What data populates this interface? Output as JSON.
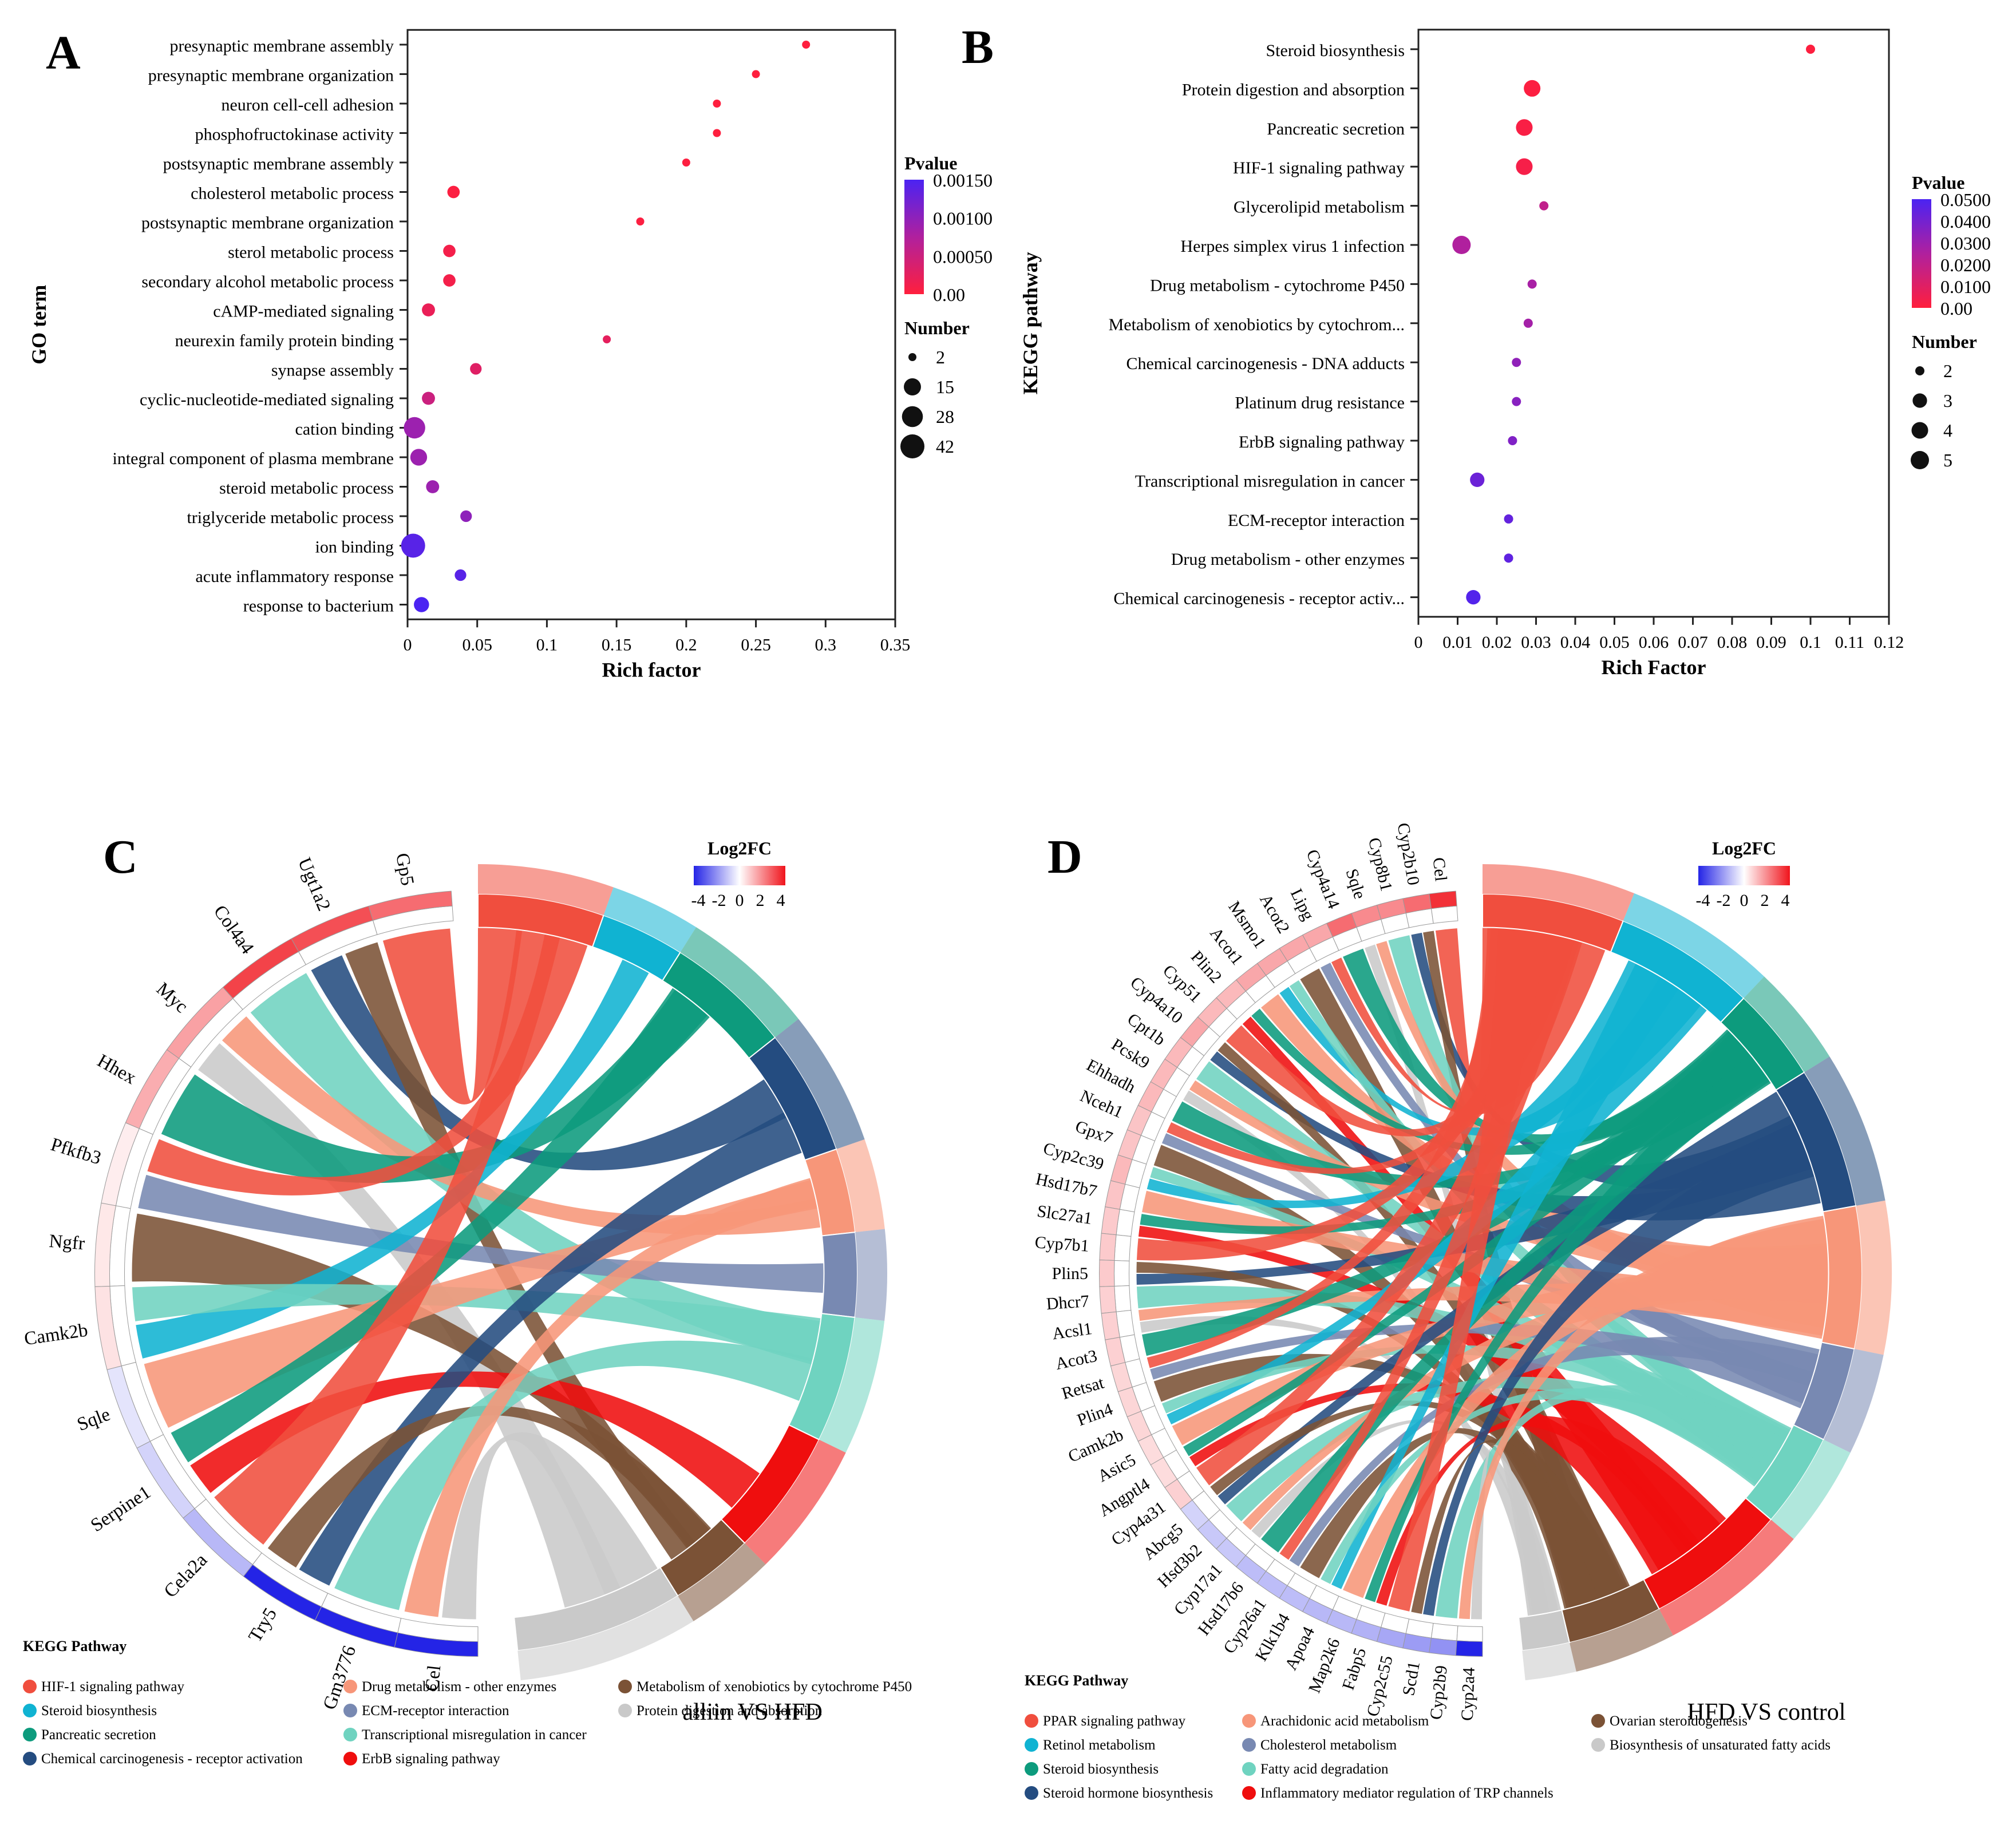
{
  "chart_data": [
    {
      "panel": "A",
      "type": "scatter",
      "xlabel": "Rich factor",
      "ylabel": "GO term",
      "xlim": [
        0,
        0.35
      ],
      "xticks": [
        "0",
        "0.05",
        "0.1",
        "0.15",
        "0.2",
        "0.25",
        "0.3",
        "0.35"
      ],
      "terms": [
        {
          "name": "presynaptic membrane assembly",
          "x": 0.286,
          "count": 2,
          "p": 1e-05
        },
        {
          "name": "presynaptic membrane organization",
          "x": 0.25,
          "count": 2,
          "p": 1e-05
        },
        {
          "name": "neuron cell-cell adhesion",
          "x": 0.222,
          "count": 2,
          "p": 1e-05
        },
        {
          "name": "phosphofructokinase activity",
          "x": 0.222,
          "count": 2,
          "p": 1e-05
        },
        {
          "name": "postsynaptic membrane assembly",
          "x": 0.2,
          "count": 2,
          "p": 2e-05
        },
        {
          "name": "cholesterol metabolic process",
          "x": 0.033,
          "count": 5,
          "p": 3e-05
        },
        {
          "name": "postsynaptic membrane organization",
          "x": 0.167,
          "count": 2,
          "p": 3e-05
        },
        {
          "name": "sterol metabolic process",
          "x": 0.03,
          "count": 5,
          "p": 0.0001
        },
        {
          "name": "secondary alcohol metabolic process",
          "x": 0.03,
          "count": 5,
          "p": 0.0001
        },
        {
          "name": "cAMP-mediated signaling",
          "x": 0.015,
          "count": 6,
          "p": 0.0002
        },
        {
          "name": "neurexin family protein binding",
          "x": 0.143,
          "count": 2,
          "p": 0.00025
        },
        {
          "name": "synapse assembly",
          "x": 0.049,
          "count": 4,
          "p": 0.0003
        },
        {
          "name": "cyclic-nucleotide-mediated signaling",
          "x": 0.015,
          "count": 6,
          "p": 0.0005
        },
        {
          "name": "cation binding",
          "x": 0.005,
          "count": 30,
          "p": 0.0009
        },
        {
          "name": "integral component of plasma membrane",
          "x": 0.008,
          "count": 14,
          "p": 0.0009
        },
        {
          "name": "steroid metabolic process",
          "x": 0.018,
          "count": 6,
          "p": 0.0009
        },
        {
          "name": "triglyceride metabolic process",
          "x": 0.042,
          "count": 4,
          "p": 0.001
        },
        {
          "name": "ion binding",
          "x": 0.004,
          "count": 42,
          "p": 0.0014
        },
        {
          "name": "acute inflammatory response",
          "x": 0.038,
          "count": 4,
          "p": 0.0014
        },
        {
          "name": "response to bacterium",
          "x": 0.01,
          "count": 10,
          "p": 0.0015
        }
      ],
      "legend": {
        "color_title": "Pvalue",
        "color_ticks": [
          "0.00150",
          "0.00100",
          "0.00050",
          "0.00"
        ],
        "size_title": "Number",
        "size_labels": [
          "2",
          "15",
          "28",
          "42"
        ]
      }
    },
    {
      "panel": "B",
      "type": "scatter",
      "xlabel": "Rich Factor",
      "ylabel": "KEGG pathway",
      "xlim": [
        0,
        0.12
      ],
      "xticks": [
        "0",
        "0.01",
        "0.02",
        "0.03",
        "0.04",
        "0.05",
        "0.06",
        "0.07",
        "0.08",
        "0.09",
        "0.1",
        "0.11",
        "0.12"
      ],
      "terms": [
        {
          "name": "Steroid biosynthesis",
          "x": 0.1,
          "count": 2,
          "p": 0.0005
        },
        {
          "name": "Protein digestion and absorption",
          "x": 0.029,
          "count": 4,
          "p": 0.001
        },
        {
          "name": "Pancreatic secretion",
          "x": 0.027,
          "count": 4,
          "p": 0.002
        },
        {
          "name": "HIF-1 signaling pathway",
          "x": 0.027,
          "count": 4,
          "p": 0.003
        },
        {
          "name": "Glycerolipid metabolism",
          "x": 0.032,
          "count": 2,
          "p": 0.02
        },
        {
          "name": "Herpes simplex virus 1 infection",
          "x": 0.011,
          "count": 5,
          "p": 0.025
        },
        {
          "name": "Drug metabolism - cytochrome P450",
          "x": 0.029,
          "count": 2,
          "p": 0.027
        },
        {
          "name": "Metabolism of xenobiotics by cytochrom...",
          "x": 0.028,
          "count": 2,
          "p": 0.028
        },
        {
          "name": "Chemical carcinogenesis - DNA adducts",
          "x": 0.025,
          "count": 2,
          "p": 0.033
        },
        {
          "name": "Platinum drug resistance",
          "x": 0.025,
          "count": 2,
          "p": 0.035
        },
        {
          "name": "ErbB signaling pathway",
          "x": 0.024,
          "count": 2,
          "p": 0.037
        },
        {
          "name": "Transcriptional misregulation in cancer",
          "x": 0.015,
          "count": 3,
          "p": 0.042
        },
        {
          "name": "ECM-receptor interaction",
          "x": 0.023,
          "count": 2,
          "p": 0.044
        },
        {
          "name": "Drug metabolism - other enzymes",
          "x": 0.023,
          "count": 2,
          "p": 0.045
        },
        {
          "name": "Chemical carcinogenesis - receptor activ...",
          "x": 0.014,
          "count": 3,
          "p": 0.048
        }
      ],
      "legend": {
        "color_title": "Pvalue",
        "color_ticks": [
          "0.0500",
          "0.0400",
          "0.0300",
          "0.0200",
          "0.0100",
          "0.00"
        ],
        "size_title": "Number",
        "size_labels": [
          "2",
          "3",
          "4",
          "5"
        ]
      }
    },
    {
      "panel": "C",
      "type": "chord",
      "comparison": "alliin VS HFD",
      "colorbar": {
        "title": "Log2FC",
        "ticks": [
          "-4",
          "-2",
          "0",
          "2",
          "4"
        ]
      },
      "genes": [
        {
          "name": "Gp5",
          "fc": 2.5
        },
        {
          "name": "Ugt1a2",
          "fc": 3
        },
        {
          "name": "Col4a4",
          "fc": 3.2
        },
        {
          "name": "Myc",
          "fc": 1.6
        },
        {
          "name": "Hhex",
          "fc": 1.4
        },
        {
          "name": "Pfkfb3",
          "fc": 0.3
        },
        {
          "name": "Ngfr",
          "fc": 0.4
        },
        {
          "name": "Camk2b",
          "fc": 0.5
        },
        {
          "name": "Sqle",
          "fc": -0.5
        },
        {
          "name": "Serpine1",
          "fc": -0.8
        },
        {
          "name": "Cela2a",
          "fc": -1.3
        },
        {
          "name": "Try5",
          "fc": -4
        },
        {
          "name": "Gm3776",
          "fc": -4
        },
        {
          "name": "Cel",
          "fc": -4
        }
      ],
      "pathways": [
        {
          "name": "HIF-1 signaling pathway",
          "color": "#f04e3e",
          "weight": 3
        },
        {
          "name": "Steroid biosynthesis",
          "color": "#10b3d2",
          "weight": 2
        },
        {
          "name": "Pancreatic secretion",
          "color": "#0d9b7d",
          "weight": 3
        },
        {
          "name": "Chemical carcinogenesis - receptor activation",
          "color": "#244c80",
          "weight": 3
        },
        {
          "name": "Drug metabolism - other enzymes",
          "color": "#f79679",
          "weight": 2
        },
        {
          "name": "ECM-receptor interaction",
          "color": "#7889b2",
          "weight": 2
        },
        {
          "name": "Transcriptional misregulation in cancer",
          "color": "#6fd3c0",
          "weight": 3
        },
        {
          "name": "ErbB signaling pathway",
          "color": "#ef0e0e",
          "weight": 3
        },
        {
          "name": "Metabolism of xenobiotics by cytochrome P450",
          "color": "#7b5236",
          "weight": 2
        },
        {
          "name": "Protein digestion and absorption",
          "color": "#c9c9c9",
          "weight": 4
        }
      ],
      "legend_title": "KEGG Pathway"
    },
    {
      "panel": "D",
      "type": "chord",
      "comparison": "HFD VS control",
      "colorbar": {
        "title": "Log2FC",
        "ticks": [
          "-4",
          "-2",
          "0",
          "2",
          "4"
        ]
      },
      "genes": [
        {
          "name": "Cel",
          "fc": 3.5
        },
        {
          "name": "Cyp2b10",
          "fc": 2.5
        },
        {
          "name": "Cyp8b1",
          "fc": 2
        },
        {
          "name": "Sqle",
          "fc": 2
        },
        {
          "name": "Cyp4a14",
          "fc": 2.5
        },
        {
          "name": "Lipg",
          "fc": 1.5
        },
        {
          "name": "Acot2",
          "fc": 1.5
        },
        {
          "name": "Msmo1",
          "fc": 1.5
        },
        {
          "name": "Acot1",
          "fc": 1.5
        },
        {
          "name": "Plin2",
          "fc": 1.2
        },
        {
          "name": "Cyp51",
          "fc": 1.2
        },
        {
          "name": "Cyp4a10",
          "fc": 1.5
        },
        {
          "name": "Cpt1b",
          "fc": 1.2
        },
        {
          "name": "Pcsk9",
          "fc": 1.2
        },
        {
          "name": "Ehhadh",
          "fc": 1.2
        },
        {
          "name": "Nceh1",
          "fc": 1
        },
        {
          "name": "Gpx7",
          "fc": 1
        },
        {
          "name": "Cyp2c39",
          "fc": 1.2
        },
        {
          "name": "Hsd17b7",
          "fc": 1
        },
        {
          "name": "Slc27a1",
          "fc": 0.9
        },
        {
          "name": "Cyp7b1",
          "fc": 0.9
        },
        {
          "name": "Plin5",
          "fc": 0.9
        },
        {
          "name": "Dhcr7",
          "fc": 0.8
        },
        {
          "name": "Acsl1",
          "fc": 0.8
        },
        {
          "name": "Acot3",
          "fc": 0.8
        },
        {
          "name": "Retsat",
          "fc": 0.7
        },
        {
          "name": "Plin4",
          "fc": 0.7
        },
        {
          "name": "Camk2b",
          "fc": 0.7
        },
        {
          "name": "Asic5",
          "fc": 0.6
        },
        {
          "name": "Angptl4",
          "fc": 0.6
        },
        {
          "name": "Cyp4a31",
          "fc": 0.8
        },
        {
          "name": "Abcg5",
          "fc": -0.8
        },
        {
          "name": "Hsd3b2",
          "fc": -1
        },
        {
          "name": "Cyp17a1",
          "fc": -1
        },
        {
          "name": "Hsd17b6",
          "fc": -1.2
        },
        {
          "name": "Cyp26a1",
          "fc": -1.2
        },
        {
          "name": "Klk1b4",
          "fc": -1.2
        },
        {
          "name": "Apoa4",
          "fc": -1.3
        },
        {
          "name": "Map2k6",
          "fc": -1.3
        },
        {
          "name": "Fabp5",
          "fc": -1.4
        },
        {
          "name": "Cyp2c55",
          "fc": -1.6
        },
        {
          "name": "Scd1",
          "fc": -1.8
        },
        {
          "name": "Cyp2b9",
          "fc": -2
        },
        {
          "name": "Cyp2a4",
          "fc": -4
        }
      ],
      "pathways": [
        {
          "name": "PPAR signaling pathway",
          "color": "#f04e3e",
          "weight": 3
        },
        {
          "name": "Retinol metabolism",
          "color": "#10b3d2",
          "weight": 3
        },
        {
          "name": "Steroid biosynthesis",
          "color": "#0d9b7d",
          "weight": 2
        },
        {
          "name": "Steroid hormone biosynthesis",
          "color": "#244c80",
          "weight": 3
        },
        {
          "name": "Arachidonic acid metabolism",
          "color": "#f79679",
          "weight": 3
        },
        {
          "name": "Cholesterol metabolism",
          "color": "#7889b2",
          "weight": 2
        },
        {
          "name": "Fatty acid degradation",
          "color": "#6fd3c0",
          "weight": 2
        },
        {
          "name": "Inflammatory mediator regulation of TRP channels",
          "color": "#ef0e0e",
          "weight": 3
        },
        {
          "name": "Ovarian steroidogenesis",
          "color": "#7b5236",
          "weight": 2
        },
        {
          "name": "Biosynthesis of unsaturated fatty acids",
          "color": "#c9c9c9",
          "weight": 1
        }
      ],
      "legend_title": "KEGG Pathway"
    }
  ]
}
